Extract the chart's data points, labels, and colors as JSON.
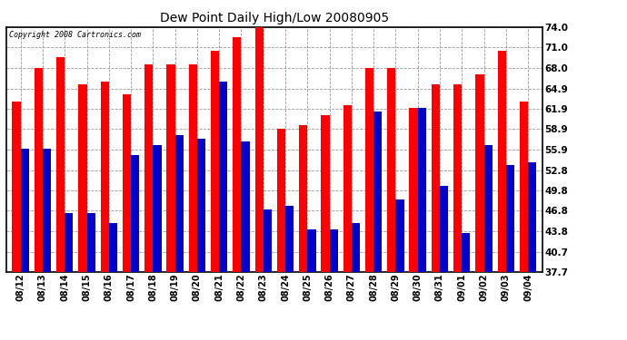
{
  "title": "Dew Point Daily High/Low 20080905",
  "copyright": "Copyright 2008 Cartronics.com",
  "dates": [
    "08/12",
    "08/13",
    "08/14",
    "08/15",
    "08/16",
    "08/17",
    "08/18",
    "08/19",
    "08/20",
    "08/21",
    "08/22",
    "08/23",
    "08/24",
    "08/25",
    "08/26",
    "08/27",
    "08/28",
    "08/29",
    "08/30",
    "08/31",
    "09/01",
    "09/02",
    "09/03",
    "09/04"
  ],
  "highs": [
    63.0,
    68.0,
    69.5,
    65.5,
    66.0,
    64.0,
    68.5,
    68.5,
    68.5,
    70.5,
    72.5,
    74.0,
    59.0,
    59.5,
    61.0,
    62.5,
    68.0,
    68.0,
    62.0,
    65.5,
    65.5,
    67.0,
    70.5,
    63.0
  ],
  "lows": [
    56.0,
    56.0,
    46.5,
    46.5,
    45.0,
    55.0,
    56.5,
    58.0,
    57.5,
    66.0,
    57.0,
    47.0,
    47.5,
    44.0,
    44.0,
    45.0,
    61.5,
    48.5,
    62.0,
    50.5,
    43.5,
    56.5,
    53.5,
    54.0
  ],
  "high_color": "#ff0000",
  "low_color": "#0000cc",
  "bg_color": "#ffffff",
  "plot_bg": "#ffffff",
  "grid_color": "#999999",
  "yticks": [
    37.7,
    40.7,
    43.8,
    46.8,
    49.8,
    52.8,
    55.9,
    58.9,
    61.9,
    64.9,
    68.0,
    71.0,
    74.0
  ],
  "ymin": 37.7,
  "ymax": 74.0
}
